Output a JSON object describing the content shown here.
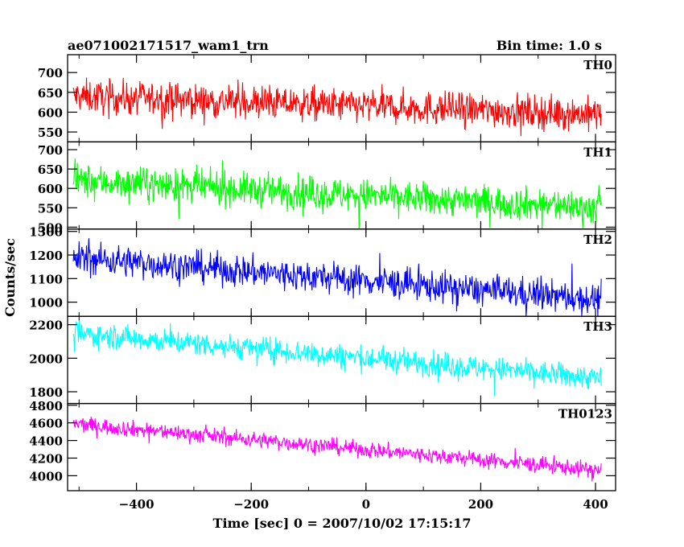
{
  "header": {
    "left_title": "ae071002171517_wam1_trn",
    "right_title": "Bin time: 1.0 s"
  },
  "xlabel": "Time [sec] 0 = 2007/10/02 17:15:17",
  "ylabel": "Counts/sec",
  "colors": {
    "TH0": "#ff0000",
    "TH1": "#00ff00",
    "TH2": "#0000ff",
    "TH3": "#00ffff",
    "TH0123": "#ff00ff"
  },
  "chart_data": {
    "type": "line",
    "grid": false,
    "x_range": [
      -510,
      410
    ],
    "x_axis_range": [
      -520,
      435
    ],
    "x_ticks": [
      -400,
      -200,
      0,
      200,
      400
    ],
    "bin_time_sec": 1.0,
    "panels": [
      {
        "name": "TH0",
        "ylim": [
          525,
          745
        ],
        "yticks": [
          550,
          600,
          650,
          700
        ],
        "mean_start": 640,
        "mean_end": 595,
        "noise_amplitude": 35
      },
      {
        "name": "TH1",
        "ylim": [
          495,
          720
        ],
        "yticks": [
          500,
          550,
          600,
          650,
          700
        ],
        "mean_start": 620,
        "mean_end": 550,
        "noise_amplitude": 35
      },
      {
        "name": "TH2",
        "ylim": [
          940,
          1310
        ],
        "yticks": [
          1000,
          1100,
          1200,
          1300
        ],
        "mean_start": 1190,
        "mean_end": 1010,
        "noise_amplitude": 55
      },
      {
        "name": "TH3",
        "ylim": [
          1730,
          2250
        ],
        "yticks": [
          1800,
          2000,
          2200
        ],
        "mean_start": 2150,
        "mean_end": 1880,
        "noise_amplitude": 60
      },
      {
        "name": "TH0123",
        "ylim": [
          3830,
          4820
        ],
        "yticks": [
          4000,
          4200,
          4400,
          4600,
          4800
        ],
        "mean_start": 4590,
        "mean_end": 4060,
        "noise_amplitude": 75
      }
    ]
  }
}
